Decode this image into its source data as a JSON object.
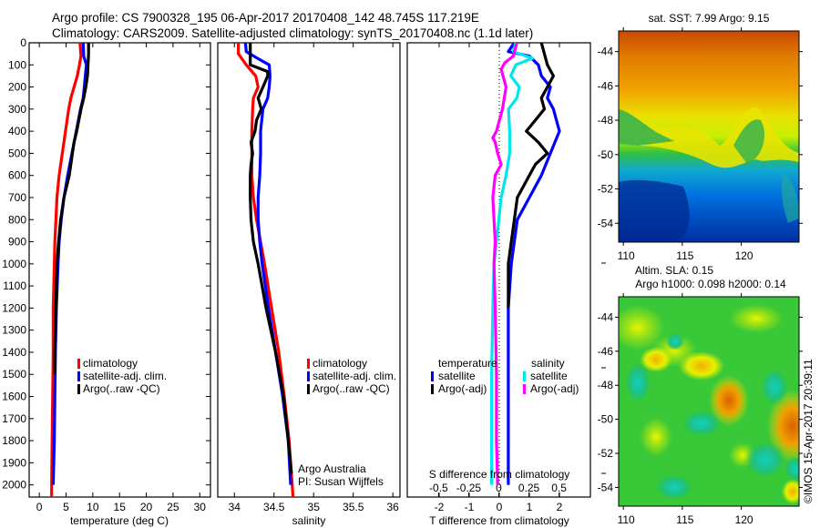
{
  "header": {
    "line1": "Argo profile: CS 7900328_195 06-Apr-2017 20170408_142 48.745S 117.219E",
    "line2": "Climatology: CARS2009. Satellite-adjusted climatology: synTS_20170408.nc (1.1d later)"
  },
  "colors": {
    "climatology": "#ff0000",
    "satellite_adj": "#0000ff",
    "argo": "#000000",
    "salinity_satellite": "#00e5ee",
    "salinity_argo": "#ff00ff"
  },
  "chart_data": [
    {
      "id": "temperature",
      "type": "line",
      "xlabel": "temperature (deg C)",
      "ylabel": "",
      "xlim": [
        -1.9,
        32
      ],
      "ylim": [
        2055,
        0
      ],
      "xticks": [
        0,
        5,
        10,
        15,
        20,
        25,
        30
      ],
      "yticks": [
        0,
        100,
        200,
        300,
        400,
        500,
        600,
        700,
        800,
        900,
        1000,
        1100,
        1200,
        1300,
        1400,
        1500,
        1600,
        1700,
        1800,
        1900,
        2000
      ],
      "legend": {
        "placement": "center-left",
        "entries": [
          "climatology",
          "satellite-adj. clim.",
          "Argo(..raw -QC)"
        ]
      },
      "series": [
        {
          "name": "climatology",
          "color": "#ff0000",
          "depth": [
            0,
            60,
            100,
            150,
            200,
            250,
            300,
            400,
            500,
            600,
            700,
            800,
            900,
            1000,
            1200,
            1400,
            1600,
            1800,
            2000,
            2055
          ],
          "values": [
            7.6,
            7.8,
            7.5,
            7.1,
            6.5,
            5.9,
            5.5,
            4.9,
            4.3,
            3.7,
            3.3,
            3.1,
            2.9,
            2.8,
            2.6,
            2.6,
            2.5,
            2.4,
            2.3,
            2.3
          ]
        },
        {
          "name": "satellite-adj. clim.",
          "color": "#0000ff",
          "depth": [
            0,
            60,
            100,
            150,
            200,
            250,
            300,
            400,
            500,
            600,
            700,
            800,
            900,
            1000,
            1200,
            1400,
            1600,
            1800,
            2000
          ],
          "values": [
            8.2,
            8.3,
            8.8,
            8.6,
            8.4,
            8.2,
            7.7,
            6.9,
            6.1,
            5.3,
            4.6,
            4.1,
            3.7,
            3.5,
            3.2,
            3.0,
            2.9,
            2.8,
            2.6
          ]
        },
        {
          "name": "Argo(..raw -QC)",
          "color": "#000000",
          "depth": [
            0,
            50,
            100,
            150,
            200,
            250,
            300,
            400,
            450,
            500,
            600,
            700,
            800,
            900,
            1000,
            1200,
            1400,
            1500
          ],
          "values": [
            9.2,
            9.2,
            9.1,
            9.0,
            8.7,
            8.3,
            7.8,
            7.0,
            6.5,
            6.2,
            5.6,
            4.6,
            4.0,
            3.6,
            3.3,
            3.1,
            2.9,
            2.9
          ]
        }
      ]
    },
    {
      "id": "salinity",
      "type": "line",
      "xlabel": "salinity",
      "xlim": [
        33.79,
        36.09
      ],
      "ylim": [
        2055,
        0
      ],
      "xticks": [
        34,
        34.5,
        35,
        35.5,
        36
      ],
      "legend": {
        "placement": "center-right",
        "entries": [
          "climatology",
          "satellite-adj. clim.",
          "Argo(..raw -QC)"
        ]
      },
      "annotation": [
        "Argo Australia",
        "PI: Susan Wijffels"
      ],
      "series": [
        {
          "name": "climatology",
          "color": "#ff0000",
          "depth": [
            0,
            50,
            100,
            150,
            200,
            250,
            300,
            400,
            500,
            600,
            700,
            800,
            900,
            1000,
            1200,
            1400,
            1600,
            1800,
            2000,
            2055
          ],
          "values": [
            34.05,
            34.05,
            34.15,
            34.27,
            34.3,
            34.24,
            34.23,
            34.22,
            34.22,
            34.22,
            34.24,
            34.28,
            34.33,
            34.38,
            34.47,
            34.56,
            34.63,
            34.69,
            34.73,
            34.74
          ]
        },
        {
          "name": "satellite-adj. clim.",
          "color": "#0000ff",
          "depth": [
            0,
            40,
            70,
            100,
            150,
            200,
            250,
            300,
            400,
            500,
            600,
            700,
            800,
            900,
            1000,
            1200,
            1400,
            1600,
            1800,
            2000
          ],
          "values": [
            34.14,
            34.15,
            34.29,
            34.44,
            34.45,
            34.44,
            34.42,
            34.36,
            34.33,
            34.33,
            34.32,
            34.3,
            34.3,
            34.32,
            34.35,
            34.43,
            34.52,
            34.61,
            34.68,
            34.71
          ]
        },
        {
          "name": "Argo(..raw -QC)",
          "color": "#000000",
          "depth": [
            0,
            100,
            130,
            150,
            200,
            250,
            300,
            350,
            400,
            450,
            500,
            550,
            600,
            700,
            800,
            900,
            1000,
            1200,
            1400,
            1600,
            1800,
            1950
          ],
          "values": [
            34.2,
            34.2,
            34.42,
            34.42,
            34.36,
            34.3,
            34.34,
            34.28,
            34.26,
            34.21,
            34.23,
            34.21,
            34.2,
            34.2,
            34.21,
            34.24,
            34.3,
            34.4,
            34.52,
            34.62,
            34.68,
            34.72
          ]
        }
      ]
    },
    {
      "id": "difference",
      "type": "line",
      "xlabel": "T difference from climatology",
      "x2label": "S difference from climatology",
      "xlim": [
        -3.06,
        3.03
      ],
      "x2lim": [
        -0.76,
        0.76
      ],
      "ylim": [
        2055,
        0
      ],
      "xticks": [
        -2,
        -1,
        0,
        1,
        2
      ],
      "x2ticks": [
        -0.5,
        -0.25,
        0,
        0.25,
        0.5
      ],
      "x2tick_labels": [
        "-0.5",
        "-0.25",
        "0",
        "0.25",
        "0.5"
      ],
      "legend": {
        "placement": "lower-center",
        "temperature_title": "temperature",
        "salinity_title": "salinity",
        "entries": [
          "satellite",
          "Argo(-adj)",
          "satellite",
          "Argo(-adj)"
        ]
      },
      "series": [
        {
          "name": "temperature satellite",
          "color": "#0000ff",
          "axis": "T",
          "depth": [
            0,
            40,
            60,
            100,
            150,
            200,
            250,
            300,
            400,
            500,
            600,
            700,
            800,
            900,
            1000,
            1200,
            1500,
            2000
          ],
          "values": [
            0.5,
            0.3,
            1.0,
            1.3,
            1.4,
            1.7,
            1.6,
            1.8,
            2.0,
            1.7,
            1.4,
            1.0,
            0.6,
            0.5,
            0.4,
            0.3,
            0.3,
            0.3
          ]
        },
        {
          "name": "temperature Argo(-adj)",
          "color": "#000000",
          "axis": "T",
          "depth": [
            0,
            50,
            100,
            150,
            200,
            250,
            300,
            350,
            400,
            450,
            500,
            550,
            600,
            700,
            800,
            900,
            1000,
            1100,
            1200
          ],
          "values": [
            1.4,
            1.5,
            1.6,
            1.8,
            1.6,
            1.4,
            1.5,
            1.2,
            0.9,
            1.3,
            1.6,
            1.2,
            1.0,
            0.6,
            0.5,
            0.4,
            0.3,
            0.3,
            0.3
          ]
        },
        {
          "name": "salinity satellite",
          "color": "#00e5ee",
          "axis": "S",
          "depth": [
            0,
            40,
            70,
            100,
            150,
            200,
            250,
            300,
            400,
            500,
            600,
            700,
            800,
            900,
            1000,
            1200,
            1500,
            2000
          ],
          "values": [
            0.14,
            0.12,
            0.28,
            0.14,
            0.1,
            0.17,
            0.15,
            0.08,
            0.09,
            0.09,
            0.06,
            0.02,
            0.0,
            -0.02,
            -0.04,
            -0.05,
            -0.06,
            -0.06
          ]
        },
        {
          "name": "salinity Argo(-adj)",
          "color": "#ff00ff",
          "axis": "S",
          "depth": [
            0,
            60,
            90,
            120,
            200,
            300,
            400,
            430,
            450,
            500,
            550,
            600,
            700,
            800,
            900,
            1000,
            1200,
            1500,
            1800,
            2000
          ],
          "values": [
            0.15,
            0.12,
            0.05,
            0.02,
            0.06,
            0.03,
            -0.02,
            -0.05,
            -0.03,
            -0.01,
            0.02,
            -0.03,
            -0.05,
            -0.04,
            -0.03,
            -0.04,
            -0.03,
            -0.02,
            -0.02,
            -0.01
          ]
        }
      ]
    },
    {
      "id": "sst-map",
      "type": "heatmap",
      "title": "sat. SST: 7.99  Argo: 9.15",
      "xlim": [
        109.6,
        124.9
      ],
      "ylim": [
        -55.1,
        -42.8
      ],
      "xticks": [
        110,
        115,
        120
      ],
      "yticks": [
        -44,
        -46,
        -48,
        -50,
        -52,
        -54
      ],
      "description": "warm (red/orange) in north, yellow/green band near -48, cold (blue) south"
    },
    {
      "id": "sla-map",
      "type": "heatmap",
      "title_line1": "Altim. SLA: 0.15",
      "title_line2": "Argo h1000: 0.098 h2000: 0.14",
      "xlim": [
        109.6,
        124.9
      ],
      "ylim": [
        -55.1,
        -42.8
      ],
      "xticks": [
        110,
        115,
        120
      ],
      "yticks": [
        -44,
        -46,
        -48,
        -50,
        -52,
        -54
      ],
      "description": "mostly green, orange highs near (119,-48.5) and (124.5,-50)"
    }
  ],
  "footer": {
    "credit": "©IMOS 15-Apr-2017 20:39:11"
  }
}
